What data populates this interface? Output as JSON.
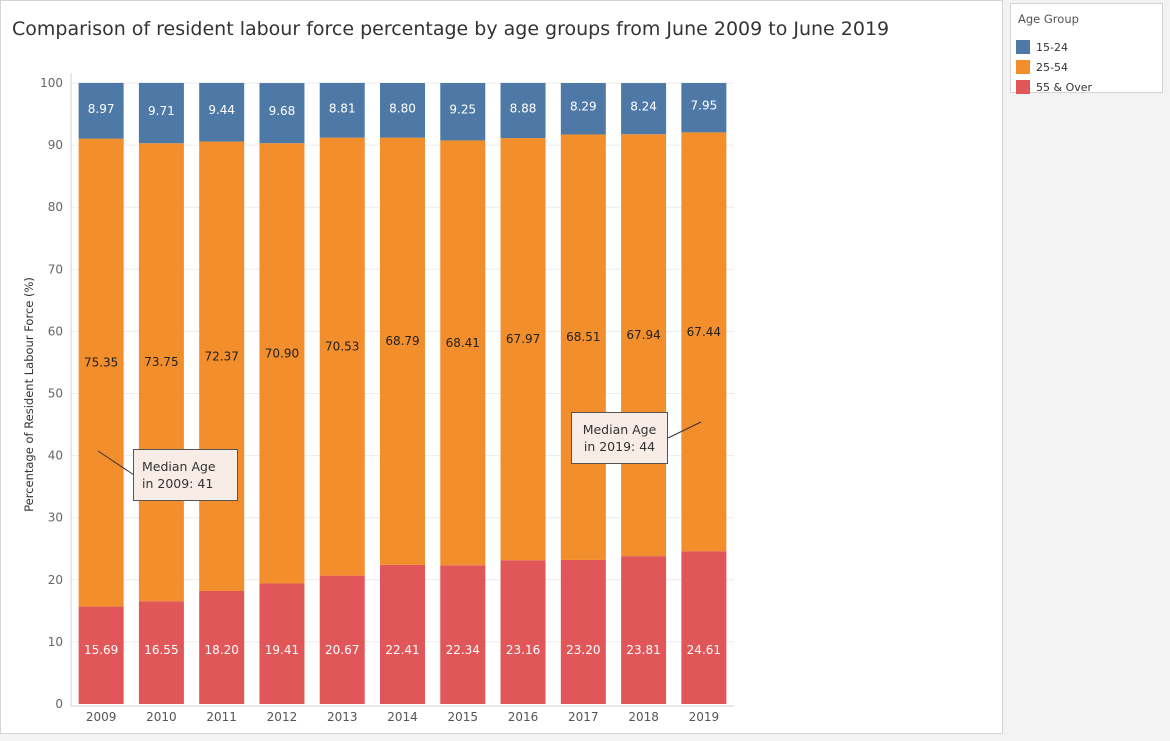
{
  "title": "Comparison of resident labour force percentage by age groups from June 2009 to June 2019",
  "legend": {
    "title": "Age Group",
    "items": [
      {
        "label": "15-24",
        "color": "#4e79a7"
      },
      {
        "label": "25-54",
        "color": "#f28e2b"
      },
      {
        "label": "55 & Over",
        "color": "#e15759"
      }
    ]
  },
  "annotations": [
    {
      "text": "Median Age in 2009: 41"
    },
    {
      "text": "Median Age in 2019: 44"
    }
  ],
  "chart_data": {
    "type": "bar",
    "stacked": true,
    "ylabel": "Percentage of Resident Labour Force (%)",
    "xlabel": "",
    "ylim": [
      0,
      100
    ],
    "yticks": [
      0,
      10,
      20,
      30,
      40,
      50,
      60,
      70,
      80,
      90,
      100
    ],
    "grid": true,
    "legend_position": "right",
    "categories": [
      "2009",
      "2010",
      "2011",
      "2012",
      "2013",
      "2014",
      "2015",
      "2016",
      "2017",
      "2018",
      "2019"
    ],
    "series": [
      {
        "name": "55 & Over",
        "color": "#e15759",
        "label_color": "#ffffff",
        "values": [
          15.69,
          16.55,
          18.2,
          19.41,
          20.67,
          22.41,
          22.34,
          23.16,
          23.2,
          23.81,
          24.61
        ],
        "labels": [
          "15.69",
          "16.55",
          "18.20",
          "19.41",
          "20.67",
          "22.41",
          "22.34",
          "23.16",
          "23.20",
          "23.81",
          "24.61"
        ]
      },
      {
        "name": "25-54",
        "color": "#f28e2b",
        "label_color": "#222222",
        "values": [
          75.35,
          73.75,
          72.37,
          70.9,
          70.53,
          68.79,
          68.41,
          67.97,
          68.51,
          67.94,
          67.44
        ],
        "labels": [
          "75.35",
          "73.75",
          "72.37",
          "70.90",
          "70.53",
          "68.79",
          "68.41",
          "67.97",
          "68.51",
          "67.94",
          "67.44"
        ]
      },
      {
        "name": "15-24",
        "color": "#4e79a7",
        "label_color": "#ffffff",
        "values": [
          8.97,
          9.71,
          9.44,
          9.68,
          8.81,
          8.8,
          9.25,
          8.88,
          8.29,
          8.24,
          7.95
        ],
        "labels": [
          "8.97",
          "9.71",
          "9.44",
          "9.68",
          "8.81",
          "8.80",
          "9.25",
          "8.88",
          "8.29",
          "8.24",
          "7.95"
        ]
      }
    ]
  }
}
